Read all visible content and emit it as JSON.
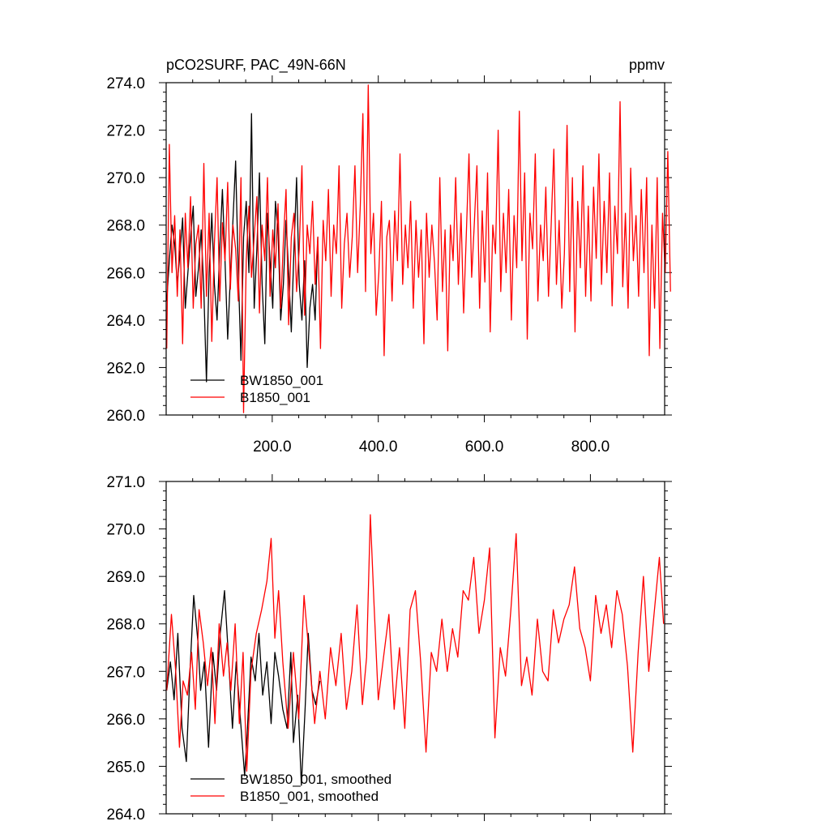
{
  "chart_data": [
    {
      "type": "line",
      "title_left": "pCO2SURF, PAC_49N-66N",
      "title_right": "ppmv",
      "xlabel": "",
      "ylabel": "",
      "xlim": [
        0,
        940
      ],
      "ylim": [
        260.0,
        274.0
      ],
      "x_ticks": [
        200,
        400,
        600,
        800
      ],
      "x_tick_labels": [
        "200.0",
        "400.0",
        "600.0",
        "800.0"
      ],
      "y_ticks": [
        260,
        262,
        264,
        266,
        268,
        270,
        272,
        274
      ],
      "y_tick_labels": [
        "260.0",
        "262.0",
        "264.0",
        "266.0",
        "268.0",
        "270.0",
        "272.0",
        "274.0"
      ],
      "grid": false,
      "legend_position": "bottom-left",
      "series": [
        {
          "name": "BW1850_001",
          "color": "#000000",
          "x_start": 1,
          "x_step": 5,
          "values": [
            264.8,
            266.5,
            268.0,
            267.2,
            265.5,
            266.8,
            268.3,
            264.5,
            266.0,
            267.5,
            268.8,
            265.0,
            266.2,
            267.8,
            265.2,
            261.4,
            266.0,
            268.5,
            265.5,
            264.0,
            267.0,
            269.5,
            266.5,
            263.2,
            265.8,
            268.2,
            270.7,
            266.0,
            262.3,
            267.5,
            269.0,
            266.0,
            272.7,
            264.5,
            267.0,
            270.2,
            265.5,
            263.0,
            268.5,
            266.5,
            264.5,
            269.0,
            267.8,
            264.0,
            265.5,
            268.2,
            266.0,
            263.5,
            267.0,
            270.0,
            265.5,
            264.0,
            266.5,
            262.0,
            264.5,
            265.5,
            264.0,
            267.5
          ],
          "approximate": true
        },
        {
          "name": "B1850_001",
          "color": "#ff0000",
          "x_start": 1,
          "x_step": 5,
          "values": [
            262.8,
            271.4,
            266.0,
            268.4,
            265.0,
            267.8,
            263.0,
            268.5,
            266.2,
            269.2,
            264.5,
            267.2,
            268.0,
            264.5,
            270.6,
            265.0,
            268.5,
            263.1,
            267.2,
            270.0,
            264.8,
            268.1,
            266.5,
            269.8,
            265.3,
            268.0,
            267.0,
            264.8,
            270.0,
            260.1,
            266.5,
            268.8,
            265.8,
            267.5,
            269.2,
            264.3,
            268.0,
            266.5,
            270.0,
            265.0,
            267.8,
            266.2,
            268.9,
            264.5,
            267.3,
            269.5,
            263.8,
            267.5,
            268.5,
            265.2,
            267.0,
            270.5,
            264.2,
            268.0,
            266.8,
            269.0,
            265.5,
            267.5,
            262.8,
            268.2,
            266.5,
            269.5,
            265.0,
            268.0,
            266.8,
            270.5,
            264.5,
            267.2,
            268.5,
            265.8,
            267.5,
            270.5,
            266.0,
            268.8,
            272.7,
            265.2,
            273.9,
            266.8,
            268.5,
            264.2,
            266.0,
            269.0,
            262.5,
            267.5,
            268.2,
            264.8,
            268.6,
            266.5,
            271.0,
            265.5,
            268.0,
            266.2,
            269.0,
            264.5,
            268.2,
            265.8,
            267.8,
            263.0,
            268.5,
            265.8,
            268.0,
            266.4,
            264.0,
            270.0,
            265.2,
            267.8,
            262.7,
            268.0,
            266.5,
            270.0,
            265.5,
            268.5,
            264.3,
            267.6,
            271.0,
            265.8,
            268.0,
            270.5,
            264.5,
            268.6,
            265.6,
            270.2,
            263.5,
            268.0,
            266.8,
            272.0,
            265.2,
            268.5,
            266.0,
            269.5,
            264.0,
            268.4,
            266.2,
            272.8,
            266.5,
            270.2,
            263.2,
            268.5,
            267.0,
            271.0,
            264.8,
            268.0,
            266.5,
            269.6,
            265.0,
            268.0,
            271.2,
            265.5,
            268.2,
            264.5,
            266.8,
            272.2,
            265.2,
            270.0,
            263.5,
            269.0,
            266.2,
            270.5,
            265.0,
            268.8,
            264.8,
            269.6,
            266.6,
            271.0,
            265.5,
            269.0,
            266.0,
            270.2,
            264.6,
            268.8,
            266.8,
            273.2,
            265.4,
            268.5,
            264.5,
            270.4,
            266.5,
            268.4,
            265.0,
            269.5,
            266.0,
            270.0,
            262.5,
            268.0,
            264.5,
            270.0,
            262.8,
            268.5,
            266.0,
            271.1,
            265.2
          ],
          "approximate": true
        }
      ]
    },
    {
      "type": "line",
      "title_left": "",
      "title_right": "",
      "xlabel": "",
      "ylabel": "",
      "xlim": [
        0,
        940
      ],
      "ylim": [
        264.0,
        271.0
      ],
      "x_ticks": [
        200,
        400,
        600,
        800
      ],
      "x_tick_labels": [],
      "y_ticks": [
        264,
        265,
        266,
        267,
        268,
        269,
        270,
        271
      ],
      "y_tick_labels": [
        "264.0",
        "265.0",
        "266.0",
        "267.0",
        "268.0",
        "269.0",
        "270.0",
        "271.0"
      ],
      "grid": false,
      "legend_position": "bottom-left",
      "series": [
        {
          "name": "BW1850_001, smoothed",
          "color": "#000000",
          "x": [
            1,
            8,
            15,
            22,
            30,
            38,
            45,
            52,
            60,
            65,
            72,
            80,
            88,
            95,
            102,
            110,
            118,
            125,
            132,
            140,
            148,
            152,
            160,
            168,
            175,
            182,
            190,
            198,
            205,
            212,
            220,
            228,
            235,
            240,
            248,
            255,
            262,
            268,
            275,
            282,
            290
          ],
          "y": [
            266.6,
            267.2,
            266.4,
            267.8,
            265.8,
            265.1,
            267.0,
            268.6,
            267.6,
            266.6,
            267.2,
            265.4,
            267.4,
            266.6,
            267.8,
            268.7,
            267.2,
            265.8,
            267.2,
            266.0,
            264.8,
            265.5,
            267.3,
            266.8,
            267.8,
            266.5,
            267.2,
            265.9,
            267.4,
            266.9,
            266.2,
            265.8,
            267.4,
            265.5,
            266.5,
            264.6,
            266.2,
            267.8,
            266.6,
            266.3,
            266.8
          ],
          "approximate": true
        },
        {
          "name": "B1850_001, smoothed",
          "color": "#ff0000",
          "x": [
            1,
            10,
            18,
            25,
            32,
            40,
            48,
            55,
            62,
            70,
            78,
            85,
            92,
            100,
            108,
            115,
            122,
            130,
            138,
            145,
            152,
            160,
            170,
            180,
            190,
            198,
            205,
            212,
            220,
            230,
            240,
            250,
            260,
            270,
            280,
            290,
            300,
            310,
            320,
            330,
            340,
            350,
            360,
            370,
            378,
            385,
            392,
            400,
            410,
            420,
            430,
            440,
            450,
            460,
            470,
            480,
            490,
            500,
            510,
            520,
            530,
            540,
            550,
            560,
            570,
            580,
            590,
            600,
            610,
            620,
            630,
            640,
            650,
            660,
            670,
            680,
            690,
            700,
            710,
            720,
            730,
            740,
            750,
            760,
            770,
            780,
            790,
            800,
            810,
            820,
            830,
            840,
            850,
            860,
            870,
            880,
            890,
            900,
            910,
            920,
            930,
            938
          ],
          "y": [
            266.6,
            268.2,
            267.0,
            265.4,
            266.8,
            266.5,
            267.4,
            266.2,
            268.3,
            267.6,
            266.7,
            267.5,
            265.9,
            268.0,
            266.9,
            267.6,
            266.6,
            268.0,
            265.9,
            267.4,
            264.9,
            267.0,
            267.8,
            268.3,
            268.9,
            269.8,
            267.7,
            268.7,
            267.2,
            265.8,
            267.4,
            266.0,
            268.6,
            267.3,
            265.9,
            267.0,
            266.0,
            267.5,
            266.7,
            267.8,
            266.2,
            267.0,
            268.4,
            266.3,
            267.3,
            270.3,
            268.4,
            266.4,
            267.3,
            268.2,
            266.2,
            267.5,
            265.8,
            268.3,
            268.7,
            267.2,
            265.3,
            267.4,
            267.0,
            268.1,
            267.0,
            267.9,
            267.3,
            268.7,
            268.5,
            269.4,
            267.8,
            268.5,
            269.6,
            265.6,
            267.5,
            266.9,
            268.3,
            269.9,
            266.7,
            267.3,
            266.5,
            268.1,
            267.0,
            266.8,
            268.3,
            267.6,
            268.1,
            268.4,
            269.2,
            267.9,
            267.5,
            266.8,
            268.6,
            267.8,
            268.4,
            267.5,
            268.7,
            268.2,
            267.1,
            265.3,
            267.4,
            269.0,
            267.0,
            268.2,
            269.4,
            268.0
          ],
          "approximate": true
        }
      ]
    }
  ]
}
